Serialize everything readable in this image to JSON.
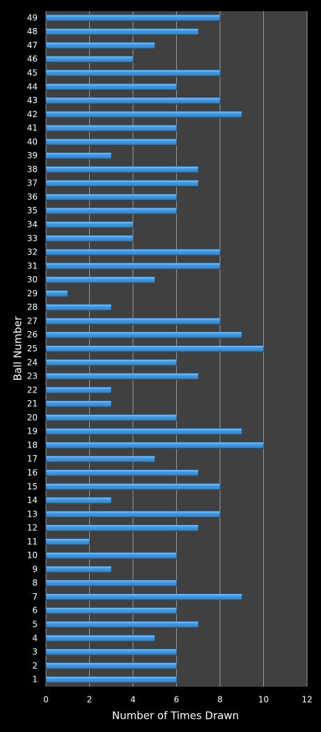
{
  "chart_data": {
    "type": "barh",
    "ylabel": "Ball Number",
    "xlabel": "Number of Times Drawn",
    "categories": [
      "1",
      "2",
      "3",
      "4",
      "5",
      "6",
      "7",
      "8",
      "9",
      "10",
      "11",
      "12",
      "13",
      "14",
      "15",
      "16",
      "17",
      "18",
      "19",
      "20",
      "21",
      "22",
      "23",
      "24",
      "25",
      "26",
      "27",
      "28",
      "29",
      "30",
      "31",
      "32",
      "33",
      "34",
      "35",
      "36",
      "37",
      "38",
      "39",
      "40",
      "41",
      "42",
      "43",
      "44",
      "45",
      "46",
      "47",
      "48",
      "49"
    ],
    "values": [
      6,
      6,
      6,
      5,
      7,
      6,
      9,
      6,
      3,
      6,
      2,
      7,
      8,
      3,
      8,
      7,
      5,
      10,
      9,
      6,
      3,
      3,
      7,
      6,
      10,
      9,
      8,
      3,
      1,
      5,
      8,
      8,
      4,
      4,
      6,
      6,
      7,
      7,
      3,
      6,
      6,
      9,
      8,
      6,
      8,
      4,
      5,
      7,
      8
    ],
    "color": "#2a8de0",
    "xlim": [
      0,
      12
    ],
    "xticks": [
      0,
      2,
      4,
      6,
      8,
      10,
      12
    ],
    "grid": true
  }
}
